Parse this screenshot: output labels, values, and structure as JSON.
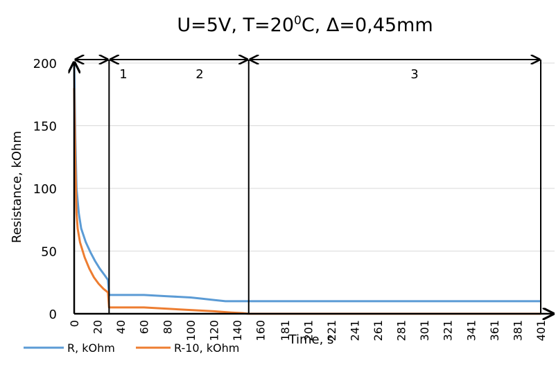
{
  "chart_data": {
    "type": "line",
    "title": {
      "main": "U=5V, T=20",
      "sup": "0",
      "rest": "C, Δ=0,45mm"
    },
    "xlabel": "Time, s",
    "ylabel": "Resistance, kOhm",
    "xlim": [
      0,
      401
    ],
    "ylim": [
      0,
      200
    ],
    "yticks": [
      "0",
      "50",
      "100",
      "150",
      "200"
    ],
    "xticks": [
      {
        "x": 0,
        "label": "0"
      },
      {
        "x": 20,
        "label": "20"
      },
      {
        "x": 40,
        "label": "40"
      },
      {
        "x": 60,
        "label": "60"
      },
      {
        "x": 80,
        "label": "80"
      },
      {
        "x": 100,
        "label": "100"
      },
      {
        "x": 120,
        "label": "120"
      },
      {
        "x": 140,
        "label": "140"
      },
      {
        "x": 160,
        "label": "160"
      },
      {
        "x": 181,
        "label": "181"
      },
      {
        "x": 201,
        "label": "201"
      },
      {
        "x": 221,
        "label": "221"
      },
      {
        "x": 241,
        "label": "241"
      },
      {
        "x": 261,
        "label": "261"
      },
      {
        "x": 281,
        "label": "281"
      },
      {
        "x": 301,
        "label": "301"
      },
      {
        "x": 321,
        "label": "321"
      },
      {
        "x": 341,
        "label": "341"
      },
      {
        "x": 361,
        "label": "361"
      },
      {
        "x": 381,
        "label": "381"
      },
      {
        "x": 401,
        "label": "401"
      }
    ],
    "grid": "horizontal",
    "legend_position": "bottom-left",
    "series": [
      {
        "name": "R, kOhm",
        "color": "#5b9bd5",
        "points": [
          [
            0,
            200
          ],
          [
            1,
            140
          ],
          [
            2,
            100
          ],
          [
            4,
            80
          ],
          [
            6,
            68
          ],
          [
            10,
            57
          ],
          [
            14,
            49
          ],
          [
            18,
            42
          ],
          [
            22,
            36
          ],
          [
            26,
            31
          ],
          [
            29,
            27
          ],
          [
            30,
            15
          ],
          [
            35,
            15
          ],
          [
            40,
            15
          ],
          [
            60,
            15
          ],
          [
            80,
            14
          ],
          [
            100,
            13
          ],
          [
            110,
            12
          ],
          [
            120,
            11
          ],
          [
            130,
            10
          ],
          [
            150,
            10
          ],
          [
            200,
            10
          ],
          [
            300,
            10
          ],
          [
            401,
            10
          ]
        ]
      },
      {
        "name": "R-10, kOhm",
        "color": "#ed7d31",
        "points": [
          [
            0,
            180
          ],
          [
            1,
            120
          ],
          [
            2,
            80
          ],
          [
            3,
            68
          ],
          [
            5,
            57
          ],
          [
            9,
            45
          ],
          [
            13,
            36
          ],
          [
            17,
            29
          ],
          [
            21,
            24
          ],
          [
            25,
            20
          ],
          [
            29,
            17
          ],
          [
            30,
            5
          ],
          [
            60,
            5
          ],
          [
            80,
            4
          ],
          [
            100,
            3
          ],
          [
            120,
            2
          ],
          [
            135,
            1
          ],
          [
            145,
            0.5
          ],
          [
            150,
            0
          ],
          [
            401,
            0
          ]
        ]
      }
    ],
    "regions": [
      {
        "label": "1",
        "from": 0,
        "to": 30
      },
      {
        "label": "2",
        "from": 30,
        "to": 150
      },
      {
        "label": "3",
        "from": 150,
        "to": 401
      }
    ],
    "region_boundaries": [
      30,
      150
    ]
  }
}
